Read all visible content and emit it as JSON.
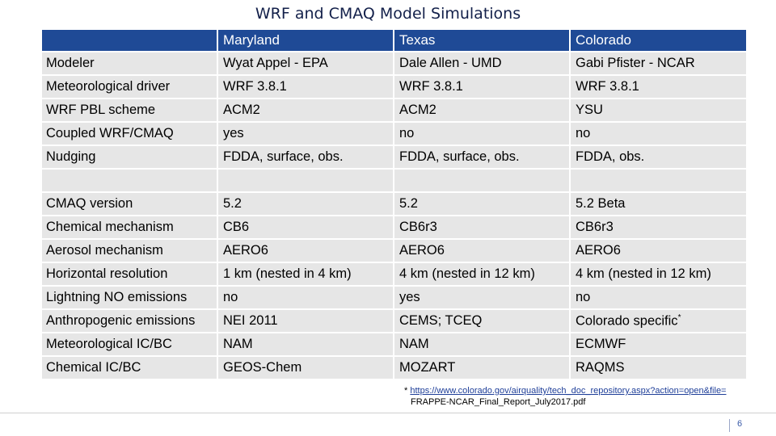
{
  "title": "WRF and CMAQ Model Simulations",
  "table": {
    "headers": [
      "",
      "Maryland",
      "Texas",
      "Colorado"
    ],
    "rows": [
      [
        "Modeler",
        "Wyat Appel - EPA",
        "Dale Allen - UMD",
        "Gabi Pfister - NCAR"
      ],
      [
        "Meteorological driver",
        "WRF 3.8.1",
        "WRF 3.8.1",
        "WRF 3.8.1"
      ],
      [
        "WRF PBL scheme",
        "ACM2",
        "ACM2",
        "YSU"
      ],
      [
        "Coupled WRF/CMAQ",
        "yes",
        "no",
        "no"
      ],
      [
        "Nudging",
        "FDDA, surface, obs.",
        "FDDA, surface, obs.",
        "FDDA, obs."
      ],
      [
        "",
        "",
        "",
        ""
      ],
      [
        "CMAQ version",
        "5.2",
        "5.2",
        "5.2 Beta"
      ],
      [
        "Chemical mechanism",
        "CB6",
        "CB6r3",
        "CB6r3"
      ],
      [
        "Aerosol mechanism",
        "AERO6",
        "AERO6",
        "AERO6"
      ],
      [
        "Horizontal resolution",
        "1 km (nested in 4 km)",
        "4 km (nested in 12 km)",
        "4 km (nested in 12 km)"
      ],
      [
        "Lightning NO emissions",
        "no",
        "yes",
        "no"
      ],
      [
        "Anthropogenic emissions",
        "NEI 2011",
        "CEMS; TCEQ",
        "Colorado specific"
      ],
      [
        "Meteorological IC/BC",
        "NAM",
        "NAM",
        "ECMWF"
      ],
      [
        "Chemical IC/BC",
        "GEOS-Chem",
        "MOZART",
        "RAQMS"
      ]
    ],
    "superscript": "*"
  },
  "footnote": {
    "marker": "*",
    "link": "https://www.colorado.gov/airquality/tech_doc_repository.aspx?action=open&file=",
    "line2": "FRAPPE-NCAR_Final_Report_July2017.pdf"
  },
  "page_number": "6",
  "colors": {
    "header_bg": "#1f4a96",
    "row_bg": "#e6e6e6",
    "title": "#13204a"
  }
}
